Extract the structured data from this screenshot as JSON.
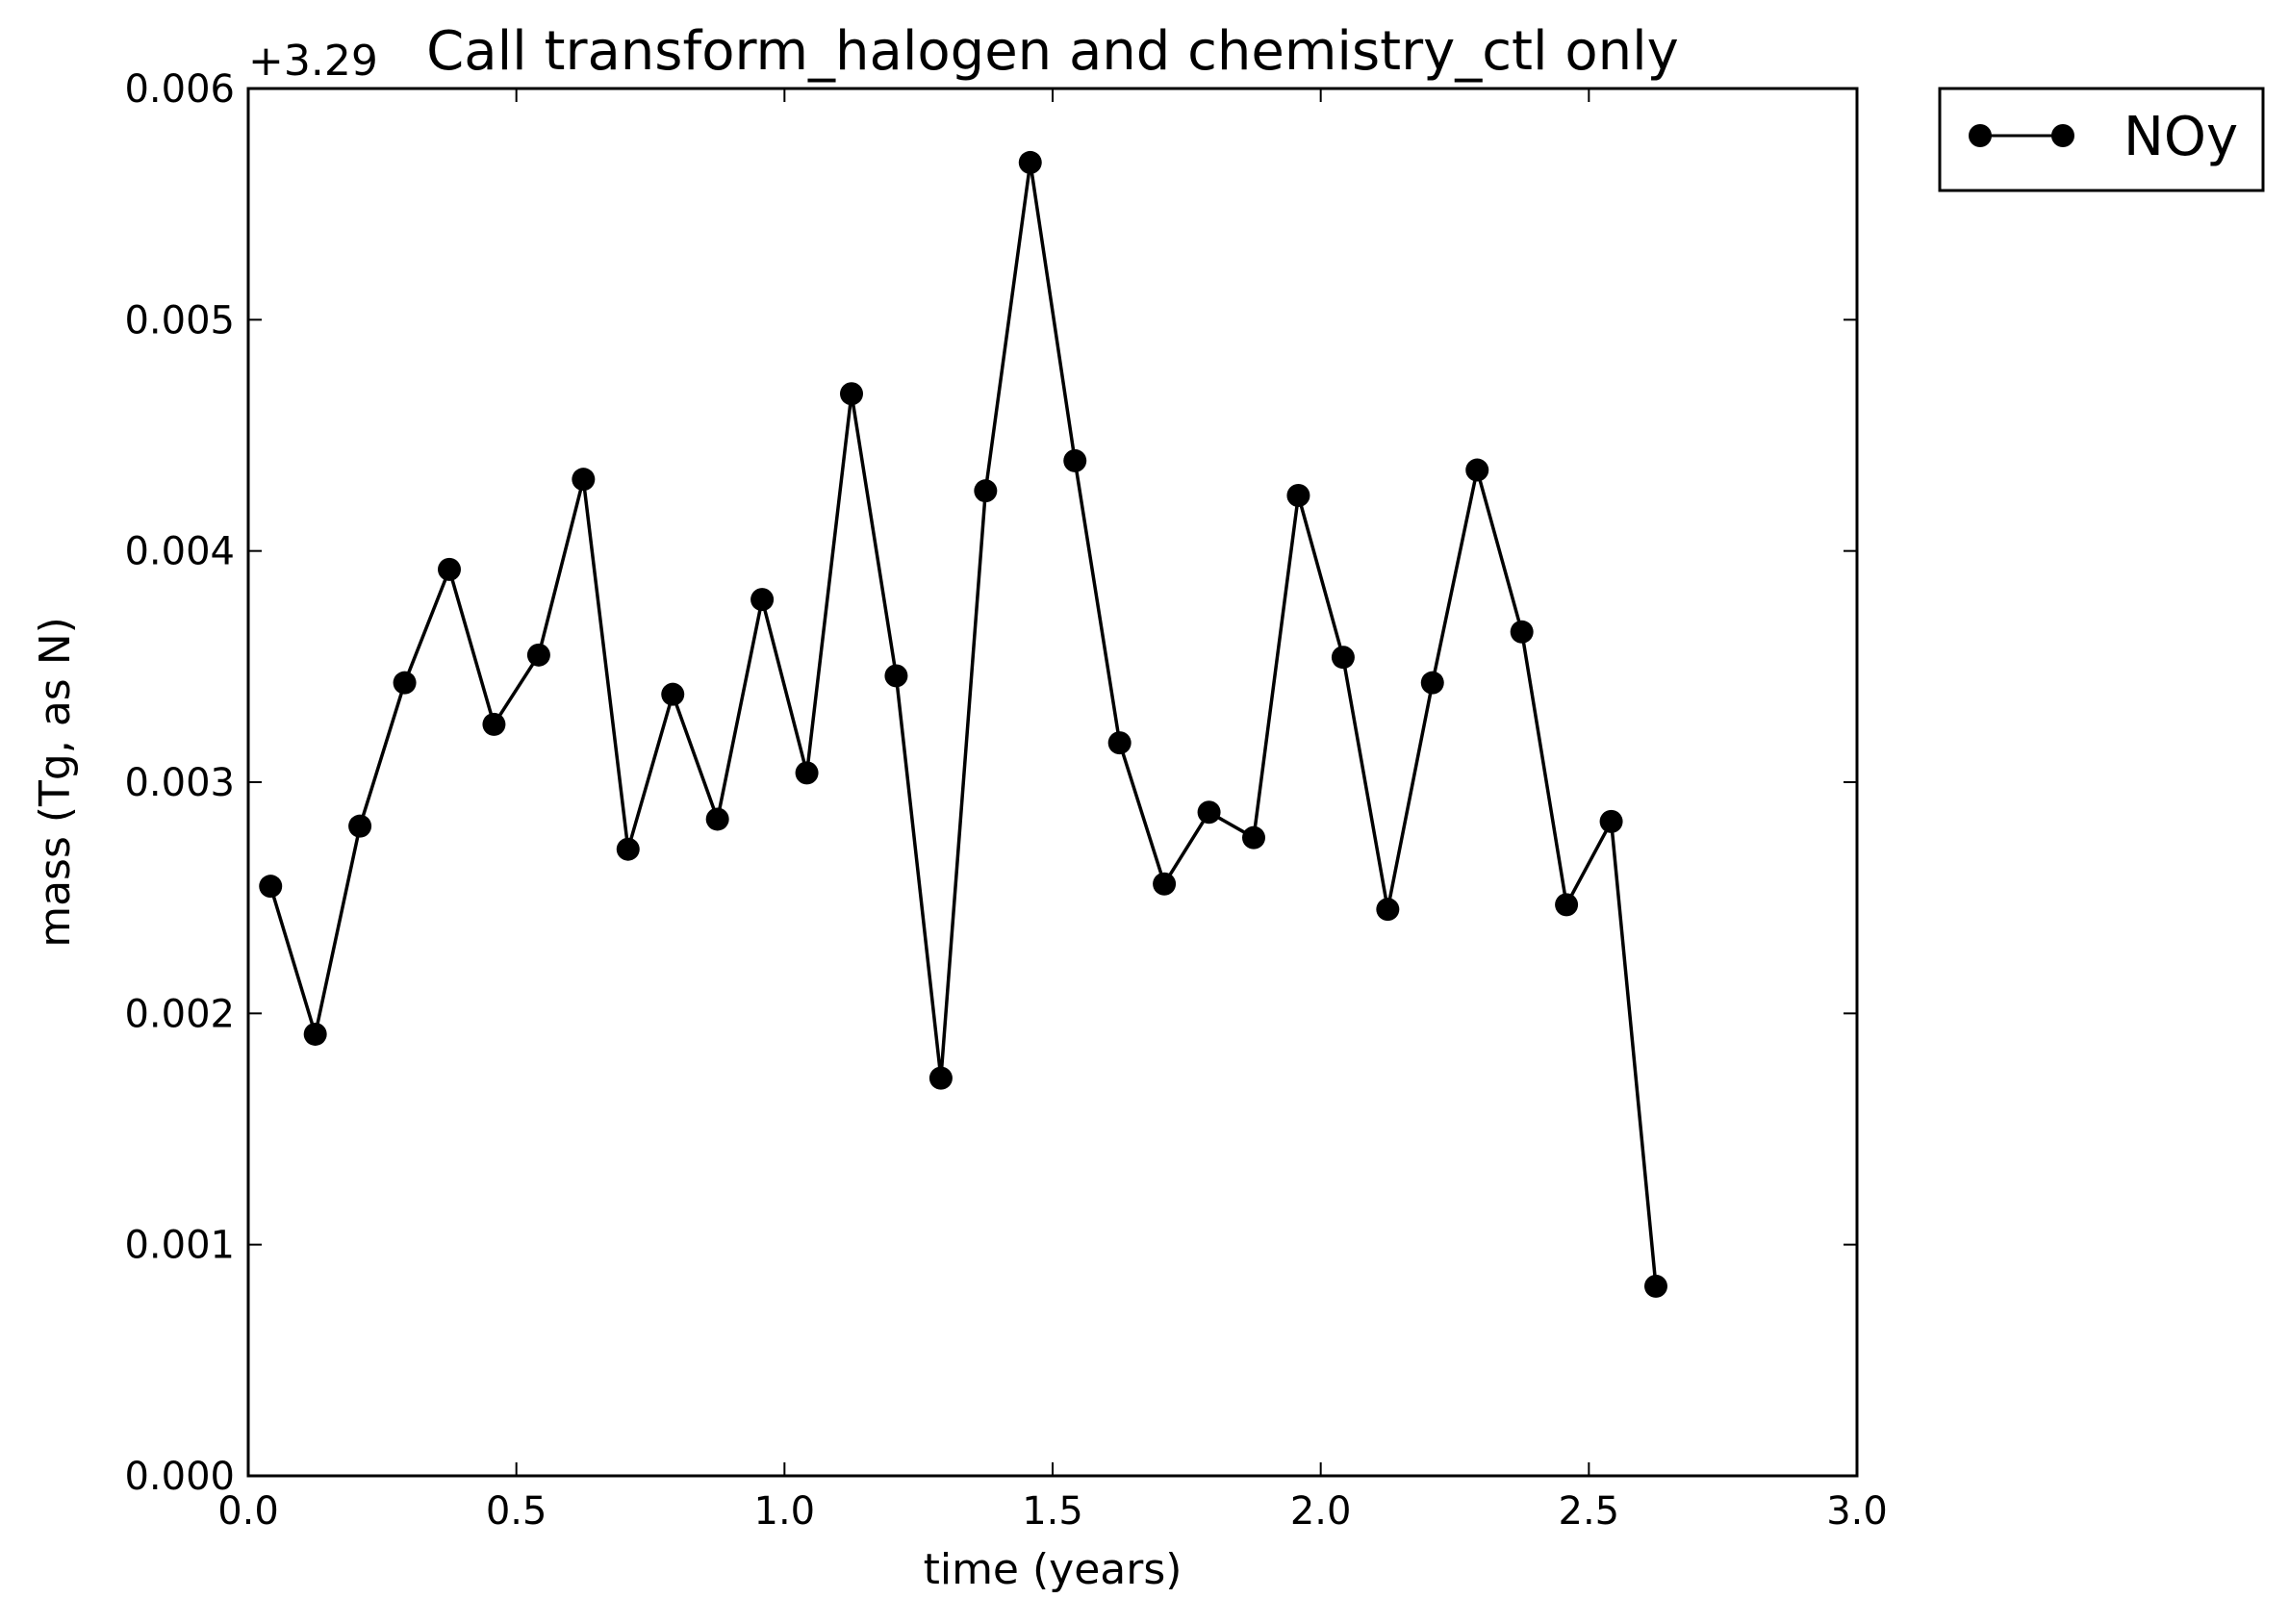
{
  "chart_data": {
    "type": "line",
    "title": "Call transform_halogen and chemistry_ctl only",
    "xlabel": "time (years)",
    "ylabel": "mass (Tg, as N)",
    "y_offset_label": "+3.29",
    "xlim": [
      0.0,
      3.0
    ],
    "ylim": [
      0.0,
      0.006
    ],
    "x_ticks": [
      "0.0",
      "0.5",
      "1.0",
      "1.5",
      "2.0",
      "2.5",
      "3.0"
    ],
    "y_ticks": [
      "0.000",
      "0.001",
      "0.002",
      "0.003",
      "0.004",
      "0.005",
      "0.006"
    ],
    "grid": false,
    "legend_position": "upper right, outside plot",
    "series": [
      {
        "name": "NOy",
        "color": "#000000",
        "marker": "circle",
        "x": [
          0.0417,
          0.125,
          0.2083,
          0.2917,
          0.375,
          0.4583,
          0.5417,
          0.625,
          0.7083,
          0.7917,
          0.875,
          0.9583,
          1.0417,
          1.125,
          1.2083,
          1.2917,
          1.375,
          1.4583,
          1.5417,
          1.625,
          1.7083,
          1.7917,
          1.875,
          1.9583,
          2.0417,
          2.125,
          2.2083,
          2.2917,
          2.375,
          2.4583,
          2.5417,
          2.625
        ],
        "y": [
          0.00255,
          0.00191,
          0.00281,
          0.00343,
          0.00392,
          0.00325,
          0.00355,
          0.00431,
          0.00271,
          0.00338,
          0.00284,
          0.00379,
          0.00304,
          0.00468,
          0.00346,
          0.00172,
          0.00426,
          0.00568,
          0.00439,
          0.00317,
          0.00256,
          0.00287,
          0.00276,
          0.00424,
          0.00354,
          0.00245,
          0.00343,
          0.00435,
          0.00365,
          0.00247,
          0.00283,
          0.00082
        ]
      }
    ]
  }
}
